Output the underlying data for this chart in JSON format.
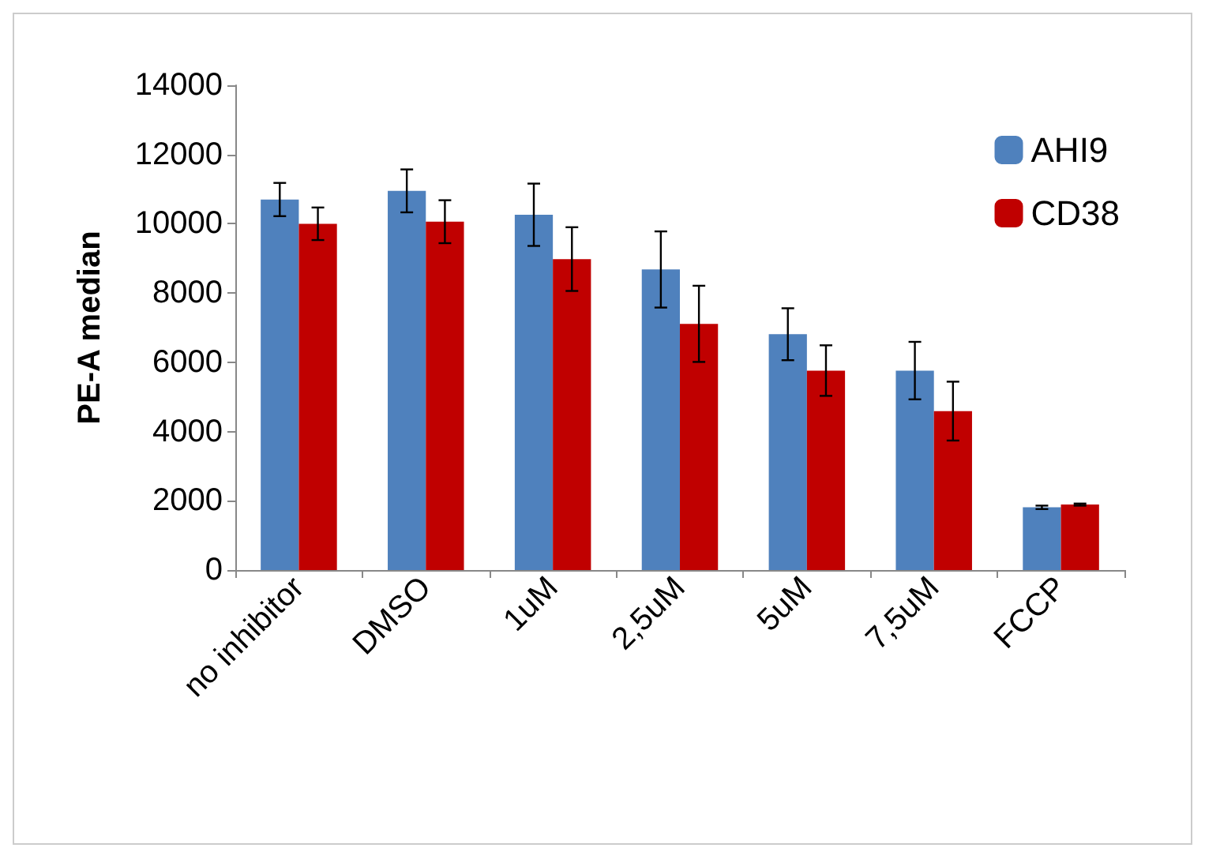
{
  "chart_data": {
    "type": "bar",
    "ylabel": "PE-A median",
    "categories": [
      "no inhibitor",
      "DMSO",
      "1uM",
      "2,5uM",
      "5uM",
      "7,5uM",
      "FCCP"
    ],
    "series": [
      {
        "name": "AHI9",
        "color": "#4f81bd",
        "values": [
          10700,
          10950,
          10260,
          8680,
          6810,
          5760,
          1810
        ],
        "errors": [
          480,
          620,
          900,
          1100,
          750,
          830,
          50
        ]
      },
      {
        "name": "CD38",
        "color": "#c00000",
        "values": [
          10000,
          10060,
          8980,
          7110,
          5760,
          4590,
          1890
        ],
        "errors": [
          470,
          620,
          920,
          1100,
          730,
          850,
          30
        ]
      }
    ],
    "ylim": [
      0,
      14000
    ],
    "yticks": [
      0,
      2000,
      4000,
      6000,
      8000,
      10000,
      12000,
      14000
    ],
    "grid": false,
    "legend": "top right"
  }
}
